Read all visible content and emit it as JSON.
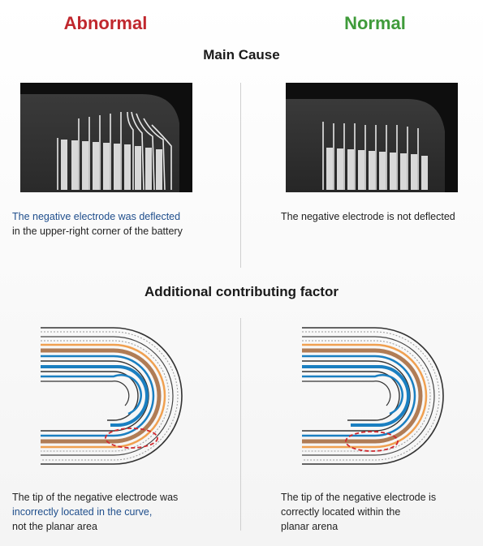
{
  "headers": {
    "abnormal": "Abnormal",
    "normal": "Normal",
    "abnormal_color": "#c0272d",
    "normal_color": "#3f9b3a"
  },
  "section1": {
    "title": "Main Cause",
    "abnormal_caption_highlight": "The negative electrode was deflected",
    "abnormal_caption_rest": "in the upper-right corner of the battery",
    "normal_caption": "The negative electrode is not deflected"
  },
  "section2": {
    "title": "Additional contributing factor",
    "abnormal_caption_line1": "The tip of the negative electrode was",
    "abnormal_caption_highlight": "incorrectly located in the curve,",
    "abnormal_caption_line3": "not the planar area",
    "normal_caption_line1": "The tip of the negative electrode is",
    "normal_caption_line2": "correctly located within the",
    "normal_caption_line3": "planar arena"
  },
  "colors": {
    "highlight_text": "#1f4e8c",
    "electrode_blue": "#1a7fc1",
    "electrode_orange": "#f0a050",
    "electrode_brown": "#b07c55",
    "outline_dark": "#333333",
    "marker_red": "#d0282e"
  }
}
